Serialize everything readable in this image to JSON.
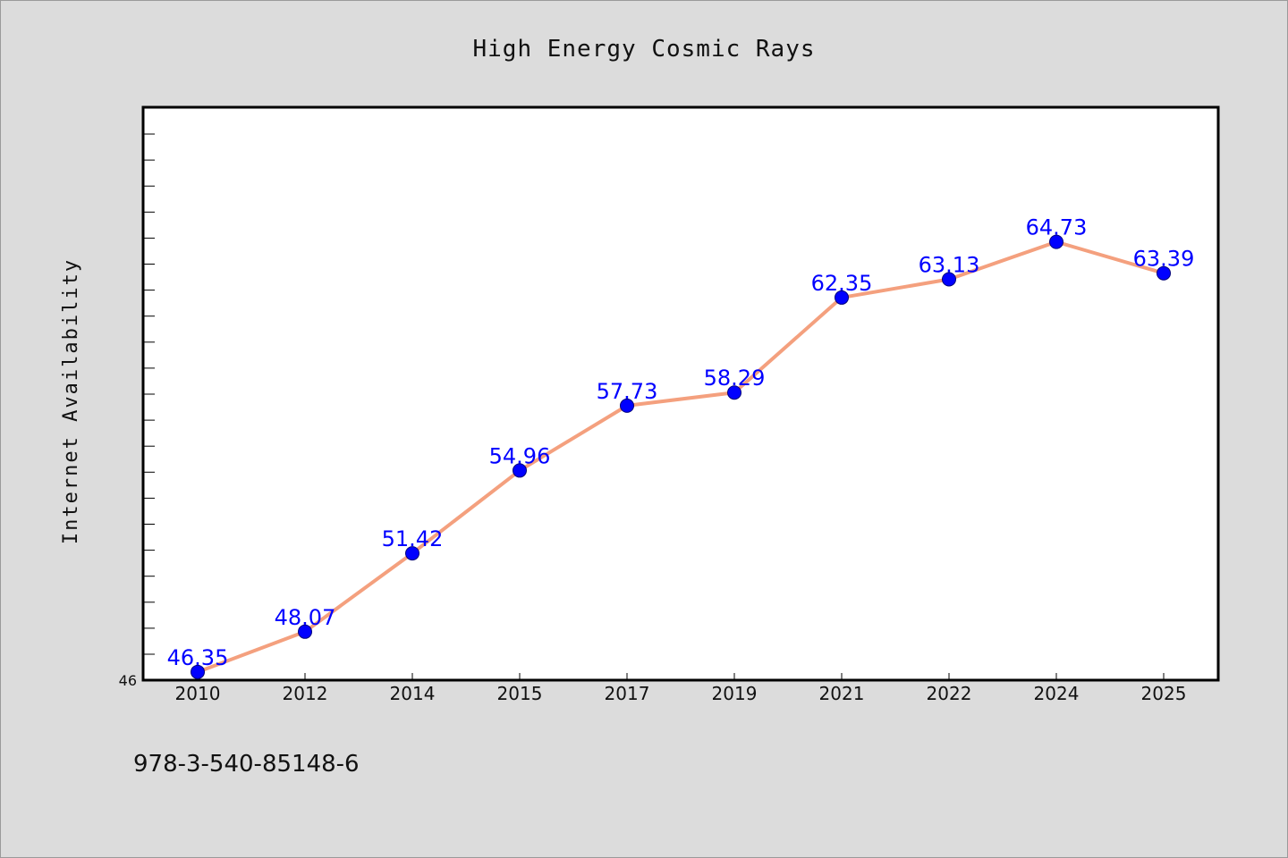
{
  "chart_data": {
    "type": "line",
    "title": "High Energy Cosmic Rays",
    "xlabel": "",
    "ylabel": "Internet Availability",
    "categories": [
      "2010",
      "2012",
      "2014",
      "2015",
      "2017",
      "2019",
      "2021",
      "2022",
      "2024",
      "2025"
    ],
    "values": [
      46.35,
      48.07,
      51.42,
      54.96,
      57.73,
      58.29,
      62.35,
      63.13,
      64.73,
      63.39
    ],
    "data_labels": [
      "46.35",
      "48.07",
      "51.42",
      "54.96",
      "57.73",
      "58.29",
      "62.35",
      "63.13",
      "64.73",
      "63.39"
    ],
    "ylim": [
      46,
      68
    ],
    "yticks": [
      "46"
    ],
    "grid": false,
    "legend": "none",
    "colors": {
      "line": "#f4a07e",
      "marker": "#0000ff",
      "label": "#0000ff",
      "plot_bg": "#ffffff",
      "page_bg": "#dcdcdc"
    }
  },
  "footer": {
    "isbn": "978-3-540-85148-6"
  }
}
